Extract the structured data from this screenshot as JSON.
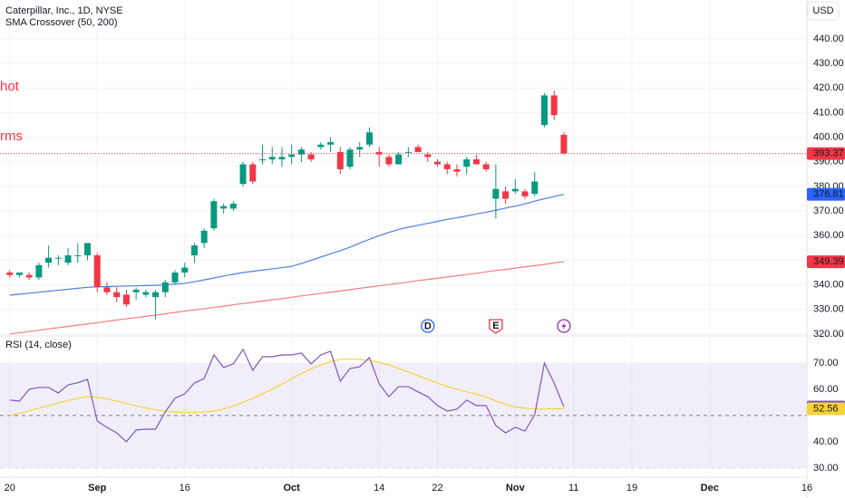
{
  "header": {
    "title": "Caterpillar, Inc., 1D, NYSE",
    "indicator": "SMA Crossover (50, 200)",
    "currency": "USD"
  },
  "overlay_texts": [
    "hot",
    "rms"
  ],
  "chart_data": [
    {
      "type": "candlestick",
      "open": [
        345,
        344,
        344,
        343,
        349,
        351,
        349,
        352,
        352,
        352,
        339,
        337,
        336,
        337,
        336,
        335,
        337,
        341,
        345,
        352,
        357,
        363,
        371,
        371,
        381,
        389,
        391,
        391,
        391,
        392,
        393,
        393,
        396,
        397,
        394,
        388,
        395,
        397,
        394,
        392,
        389,
        394,
        396,
        393,
        390,
        389,
        387,
        388,
        391,
        389,
        375,
        378,
        378,
        378,
        377,
        405,
        417,
        401
      ],
      "high": [
        346,
        345,
        345,
        349,
        356,
        352,
        355,
        357,
        357,
        353,
        341,
        339,
        338,
        339,
        338,
        338,
        342,
        346,
        349,
        357,
        363,
        375,
        373,
        374,
        390,
        390,
        397,
        396,
        396,
        397,
        396,
        394,
        398,
        400,
        396,
        396,
        398,
        404,
        396,
        393,
        394,
        396,
        397,
        394,
        391,
        390,
        389,
        392,
        393,
        390,
        389,
        380,
        383,
        379,
        386,
        418,
        419,
        402
      ],
      "low": [
        343,
        343,
        342,
        342,
        347,
        348,
        348,
        349,
        350,
        337,
        336,
        333,
        331,
        334,
        335,
        326,
        335,
        340,
        343,
        349,
        355,
        362,
        369,
        370,
        380,
        381,
        389,
        389,
        388,
        389,
        390,
        390,
        395,
        394,
        385,
        387,
        392,
        396,
        388,
        388,
        389,
        392,
        394,
        390,
        388,
        385,
        384,
        385,
        389,
        386,
        367,
        373,
        377,
        375,
        376,
        404,
        407,
        393
      ],
      "close": [
        344,
        345,
        343,
        348,
        351,
        351,
        352,
        352,
        357,
        339,
        337,
        335,
        332,
        338,
        337,
        337,
        341,
        345,
        347,
        356,
        362,
        374,
        372,
        373,
        389,
        382,
        391,
        392,
        392,
        393,
        395,
        391,
        397,
        398,
        387,
        395,
        396,
        402,
        393,
        389,
        393,
        394,
        394,
        392,
        389,
        387,
        386,
        391,
        389,
        387,
        379,
        375,
        379,
        376,
        382,
        417,
        409,
        393.37
      ],
      "up_color": "#089981",
      "down_color": "#f23645",
      "lines": [
        {
          "color": "#4f7fe3",
          "values": [
            335.8,
            336.2,
            336.6,
            337.0,
            337.4,
            337.8,
            338.2,
            338.6,
            339.0,
            339.2,
            339.3,
            339.4,
            339.5,
            339.6,
            339.7,
            339.8,
            340.0,
            340.3,
            340.6,
            341.3,
            342.0,
            342.8,
            343.6,
            344.3,
            345.0,
            345.5,
            346.0,
            346.5,
            347.0,
            347.5,
            348.7,
            350.0,
            351.3,
            352.6,
            353.9,
            355.3,
            357.0,
            358.5,
            360.0,
            361.3,
            362.5,
            363.4,
            364.2,
            365.0,
            365.8,
            366.6,
            367.3,
            368.0,
            368.8,
            369.5,
            370.3,
            371.2,
            372.0,
            372.9,
            374.0,
            375.0,
            375.9,
            376.81
          ]
        },
        {
          "color": "#f77c80",
          "values": [
            320.0,
            320.5,
            321.0,
            321.5,
            322.1,
            322.6,
            323.1,
            323.6,
            324.1,
            324.6,
            325.2,
            325.7,
            326.2,
            326.7,
            327.2,
            327.7,
            328.2,
            328.8,
            329.3,
            329.8,
            330.3,
            330.8,
            331.3,
            331.9,
            332.4,
            332.9,
            333.4,
            333.9,
            334.4,
            335.0,
            335.5,
            336.0,
            336.5,
            337.0,
            337.5,
            338.0,
            338.6,
            339.1,
            339.6,
            340.1,
            340.6,
            341.1,
            341.7,
            342.2,
            342.7,
            343.2,
            343.7,
            344.2,
            344.7,
            345.3,
            345.8,
            346.3,
            346.8,
            347.3,
            347.8,
            348.3,
            348.9,
            349.39
          ]
        }
      ],
      "xlim": [
        -1,
        82
      ],
      "xticks": [
        {
          "value": 0,
          "label": "20"
        },
        {
          "value": 9,
          "label": "Sep"
        },
        {
          "value": 18,
          "label": "16"
        },
        {
          "value": 29,
          "label": "Oct"
        },
        {
          "value": 38,
          "label": "14"
        },
        {
          "value": 44,
          "label": "22"
        },
        {
          "value": 52,
          "label": "Nov"
        },
        {
          "value": 58,
          "label": "11"
        },
        {
          "value": 64,
          "label": "19"
        },
        {
          "value": 72,
          "label": "Dec"
        },
        {
          "value": 82,
          "label": "16"
        }
      ],
      "ylim": [
        319.6,
        455.8
      ],
      "yticks": [
        {
          "value": 320,
          "label": "320.00"
        },
        {
          "value": 330,
          "label": "330.00"
        },
        {
          "value": 340,
          "label": "340.00"
        },
        {
          "value": 350,
          "label": "350.00"
        },
        {
          "value": 360,
          "label": "360.00"
        },
        {
          "value": 370,
          "label": "370.00"
        },
        {
          "value": 380,
          "label": "380.00"
        },
        {
          "value": 390,
          "label": "390.00"
        },
        {
          "value": 400,
          "label": "400.00"
        },
        {
          "value": 410,
          "label": "410.00"
        },
        {
          "value": 420,
          "label": "420.00"
        },
        {
          "value": 430,
          "label": "430.00"
        },
        {
          "value": 440,
          "label": "440.00"
        }
      ],
      "grid": true,
      "axis_tags": [
        {
          "value": 393.37,
          "color": "#f23645",
          "price_line": true
        },
        {
          "value": 376.81,
          "color": "#2962ff"
        },
        {
          "value": 349.39,
          "color": "#f23645"
        }
      ],
      "events": [
        {
          "label": "D",
          "bar": 43,
          "color": "#2962ff"
        },
        {
          "label": "E",
          "bar": 50,
          "color": "#f23645"
        },
        {
          "icon": "bolt",
          "bar": 57,
          "color": "#9c27b0"
        }
      ]
    },
    {
      "type": "line",
      "title": "RSI (14, close)",
      "series": [
        {
          "color": "#7e57c2",
          "values": [
            55.9,
            55.5,
            60.0,
            60.7,
            60.7,
            58.6,
            61.7,
            62.5,
            63.8,
            47.9,
            45.5,
            43.4,
            40.0,
            44.5,
            44.8,
            44.8,
            51.4,
            56.6,
            58.3,
            62.4,
            64.1,
            73.1,
            68.3,
            69.7,
            75.2,
            67.2,
            72.4,
            72.4,
            73.1,
            73.1,
            73.8,
            69.7,
            73.1,
            74.5,
            63.1,
            67.9,
            68.6,
            72.1,
            62.1,
            57.2,
            61.0,
            61.0,
            59.0,
            57.2,
            53.8,
            51.7,
            52.4,
            55.9,
            53.8,
            53.8,
            46.2,
            43.4,
            45.5,
            44.1,
            50.3,
            70.0,
            62.4,
            53.27
          ]
        },
        {
          "color": "#f5d33a",
          "values": [
            50.0,
            50.8,
            51.8,
            52.8,
            53.8,
            54.8,
            55.7,
            56.5,
            57.2,
            57.0,
            56.3,
            55.5,
            54.6,
            53.7,
            52.9,
            52.2,
            51.6,
            51.3,
            51.2,
            51.2,
            51.3,
            51.7,
            52.5,
            53.6,
            55.0,
            56.6,
            58.3,
            60.1,
            62.0,
            64.0,
            66.0,
            67.8,
            69.3,
            70.6,
            71.4,
            71.6,
            71.4,
            71.0,
            70.3,
            69.3,
            68.0,
            66.6,
            65.2,
            63.8,
            62.4,
            61.1,
            60.0,
            59.0,
            58.2,
            57.0,
            55.6,
            54.3,
            53.3,
            52.8,
            52.5,
            52.5,
            52.6,
            52.56
          ]
        }
      ],
      "ylim": [
        26.5,
        80
      ],
      "yticks": [
        {
          "value": 30,
          "label": "30.00"
        },
        {
          "value": 40,
          "label": "40.00"
        },
        {
          "value": 60,
          "label": "60.00"
        },
        {
          "value": 70,
          "label": "70.00"
        }
      ],
      "levels": [
        70,
        50,
        30
      ],
      "band_fill": "rgba(126,87,194,0.1)",
      "axis_tags": [
        {
          "value": 53.27,
          "color": "#7e57c2",
          "text_color": "#ffffff"
        },
        {
          "value": 52.56,
          "color": "#f5d33a",
          "text_color": "#131722"
        }
      ]
    }
  ]
}
